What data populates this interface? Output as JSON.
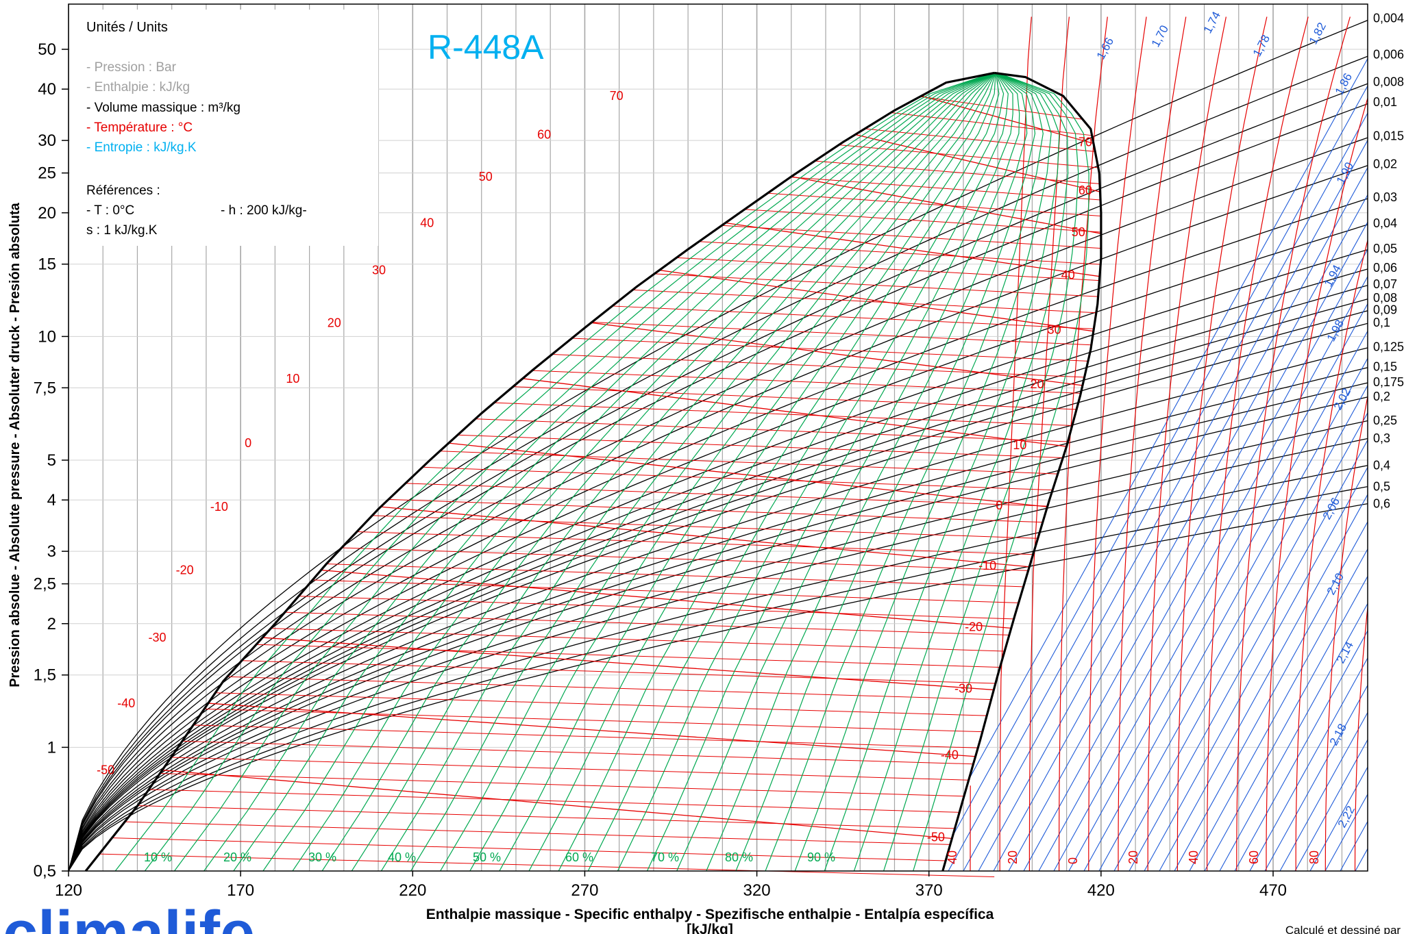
{
  "chart_data": {
    "type": "line",
    "title": "R-448A",
    "xlabel_line1": "Enthalpie massique - Specific enthalpy - Spezifische enthalpie - Entalpía específica",
    "xlabel_line2": "[kJ/kg]",
    "ylabel": "Pression absolue - Absolute pressure - Absoluter druck - Presión absoluta",
    "x_scale": "linear",
    "y_scale": "log",
    "xlim": [
      120,
      500
    ],
    "ylim": [
      0.5,
      60
    ],
    "grid": true,
    "x_ticks": [
      "120",
      "170",
      "220",
      "270",
      "320",
      "370",
      "420",
      "470"
    ],
    "x_tick_values": [
      120,
      170,
      220,
      270,
      320,
      370,
      420,
      470
    ],
    "y_ticks": [
      "0,5",
      "1",
      "1,5",
      "2",
      "2,5",
      "3",
      "4",
      "5",
      "7,5",
      "10",
      "15",
      "20",
      "25",
      "30",
      "40",
      "50"
    ],
    "y_tick_values": [
      0.5,
      1,
      1.5,
      2,
      2.5,
      3,
      4,
      5,
      7.5,
      10,
      15,
      20,
      25,
      30,
      40,
      50
    ],
    "legend": {
      "heading": "Unités / Units",
      "lines": [
        {
          "text": "- Pression : Bar",
          "color": "#a0a0a0"
        },
        {
          "text": "- Enthalpie : kJ/kg",
          "color": "#a0a0a0"
        },
        {
          "text": "- Volume massique : m³/kg",
          "color": "#000000"
        },
        {
          "text": "- Température : °C",
          "color": "#e60000"
        },
        {
          "text": "- Entropie : kJ/kg.K",
          "color": "#00b0f0"
        }
      ],
      "ref_heading": "Références :",
      "ref_line1a": "- T : 0°C",
      "ref_line1b": "- h : 200 kJ/kg-",
      "ref_line2": "s : 1 kJ/kg.K"
    },
    "saturation_liquid": [
      [
        125,
        0.5
      ],
      [
        140,
        0.72
      ],
      [
        150,
        0.95
      ],
      [
        165,
        1.45
      ],
      [
        180,
        2.0
      ],
      [
        195,
        2.8
      ],
      [
        210,
        3.8
      ],
      [
        225,
        5.0
      ],
      [
        240,
        6.5
      ],
      [
        255,
        8.3
      ],
      [
        270,
        10.5
      ],
      [
        285,
        13.2
      ],
      [
        300,
        16.3
      ],
      [
        315,
        20.0
      ],
      [
        330,
        24.5
      ],
      [
        345,
        29.7
      ],
      [
        360,
        35.5
      ],
      [
        375,
        41.5
      ],
      [
        389,
        43.8
      ]
    ],
    "saturation_vapor": [
      [
        374,
        0.5
      ],
      [
        380,
        0.75
      ],
      [
        385,
        1.05
      ],
      [
        390,
        1.5
      ],
      [
        395,
        2.1
      ],
      [
        400,
        2.9
      ],
      [
        405,
        4.0
      ],
      [
        410,
        5.4
      ],
      [
        414,
        7.2
      ],
      [
        417,
        9.3
      ],
      [
        419,
        12.0
      ],
      [
        420,
        15.5
      ],
      [
        420,
        20.0
      ],
      [
        419.5,
        25.0
      ],
      [
        417,
        32.0
      ],
      [
        409,
        38.5
      ],
      [
        398,
        42.8
      ],
      [
        389,
        43.8
      ]
    ],
    "critical_point": {
      "h": 389,
      "p": 43.8
    },
    "isotherms": {
      "color": "#e60000",
      "labels": [
        "-50",
        "-40",
        "-30",
        "-20",
        "-10",
        "0",
        "10",
        "20",
        "30",
        "40",
        "50",
        "60",
        "70"
      ],
      "liquid_label_points": [
        [
          127,
          0.88
        ],
        [
          133,
          1.28
        ],
        [
          142,
          1.85
        ],
        [
          150,
          2.7
        ],
        [
          160,
          3.85
        ],
        [
          170,
          5.5
        ],
        [
          182,
          7.9
        ],
        [
          194,
          10.8
        ],
        [
          207,
          14.5
        ],
        [
          221,
          18.9
        ],
        [
          238,
          24.5
        ],
        [
          255,
          31.0
        ],
        [
          276,
          38.5
        ]
      ],
      "vapor_label_points": [
        [
          375,
          0.6
        ],
        [
          379,
          0.95
        ],
        [
          383,
          1.38
        ],
        [
          386,
          1.95
        ],
        [
          390,
          2.75
        ],
        [
          395,
          3.85
        ],
        [
          400,
          5.4
        ],
        [
          405,
          7.6
        ],
        [
          410,
          10.3
        ],
        [
          414,
          14.0
        ],
        [
          417,
          17.8
        ],
        [
          419,
          22.5
        ],
        [
          419,
          29.5
        ]
      ],
      "bottom_labels": [
        "40",
        "20",
        "0",
        "20",
        "40",
        "60",
        "80"
      ]
    },
    "isochores": {
      "color": "#000000",
      "values": [
        "0,004",
        "0,006",
        "0,008",
        "0,01",
        "0,015",
        "0,02",
        "0,03",
        "0,04",
        "0,05",
        "0,06",
        "0,07",
        "0,08",
        "0,09",
        "0,1",
        "0,125",
        "0,15",
        "0,175",
        "0,2",
        "0,25",
        "0,3",
        "0,4",
        "0,5",
        "0,6"
      ],
      "right_edge_p": [
        60,
        49,
        42,
        37.5,
        31,
        26.5,
        22,
        19,
        16.5,
        14.8,
        13.5,
        12.5,
        11.7,
        10.9,
        9.5,
        8.5,
        7.8,
        7.2,
        6.3,
        5.7,
        4.9,
        4.35,
        3.95
      ]
    },
    "isentropes": {
      "color": "#1f5bd8",
      "labels": [
        "1,66",
        "1,70",
        "1,74",
        "1,78",
        "1,82",
        "1,86",
        "1,90",
        "1,94",
        "1,98",
        "2,02",
        "2,06",
        "2,10",
        "2,14",
        "2,18",
        "2,22"
      ]
    },
    "quality_lines": {
      "color": "#00a850",
      "labels": [
        "10 %",
        "20 %",
        "30 %",
        "40 %",
        "50 %",
        "60 %",
        "70 %",
        "80 %",
        "90 %"
      ]
    }
  },
  "brand": {
    "logo_text": "climalife",
    "credit": "Calculé et dessiné par"
  }
}
